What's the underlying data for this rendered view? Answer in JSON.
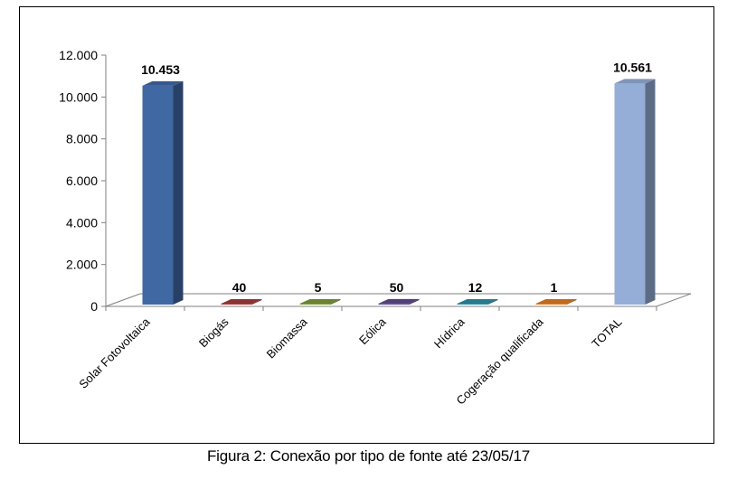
{
  "chart_data": {
    "type": "bar",
    "categories": [
      "Solar Fotovoltaica",
      "Biogás",
      "Biomassa",
      "Eólica",
      "Hídrica",
      "Cogeração qualificada",
      "TOTAL"
    ],
    "values": [
      10453,
      40,
      5,
      50,
      12,
      1,
      10561
    ],
    "data_labels": [
      "10.453",
      "40",
      "5",
      "50",
      "12",
      "1",
      "10.561"
    ],
    "ylim": [
      0,
      12000
    ],
    "y_ticks": [
      0,
      2000,
      4000,
      6000,
      8000,
      10000,
      12000
    ],
    "y_tick_labels": [
      "0",
      "2.000",
      "4.000",
      "6.000",
      "8.000",
      "10.000",
      "12.000"
    ],
    "grid": false,
    "legend": "none",
    "style": "3d-column",
    "colors": [
      "#4068a3",
      "#a33d3b",
      "#7d9a3a",
      "#5f4a8c",
      "#2e8fa3",
      "#e27b22",
      "#95aed7"
    ]
  },
  "caption": "Figura 2: Conexão por tipo de fonte até 23/05/17"
}
